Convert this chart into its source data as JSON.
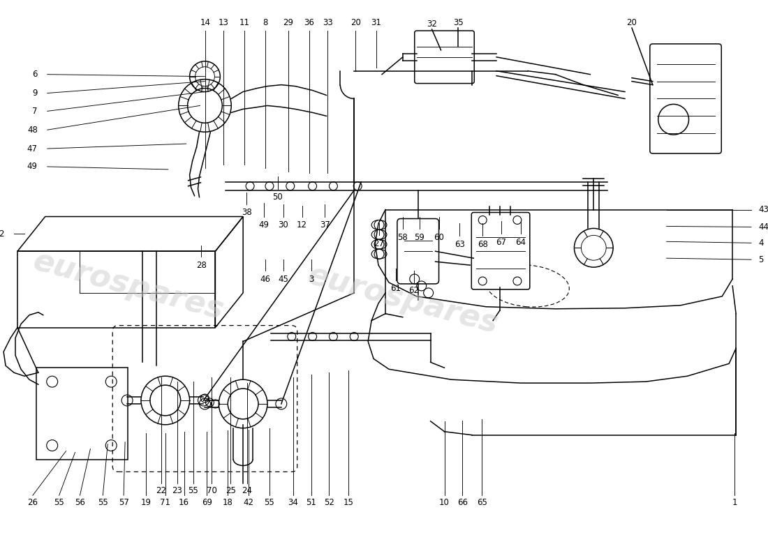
{
  "bg_color": "#ffffff",
  "line_color": "#000000",
  "watermark_color": "#cccccc",
  "fig_width": 11.0,
  "fig_height": 8.0,
  "dpi": 100,
  "lw": 1.1,
  "tw": 0.65,
  "fs": 8.5
}
